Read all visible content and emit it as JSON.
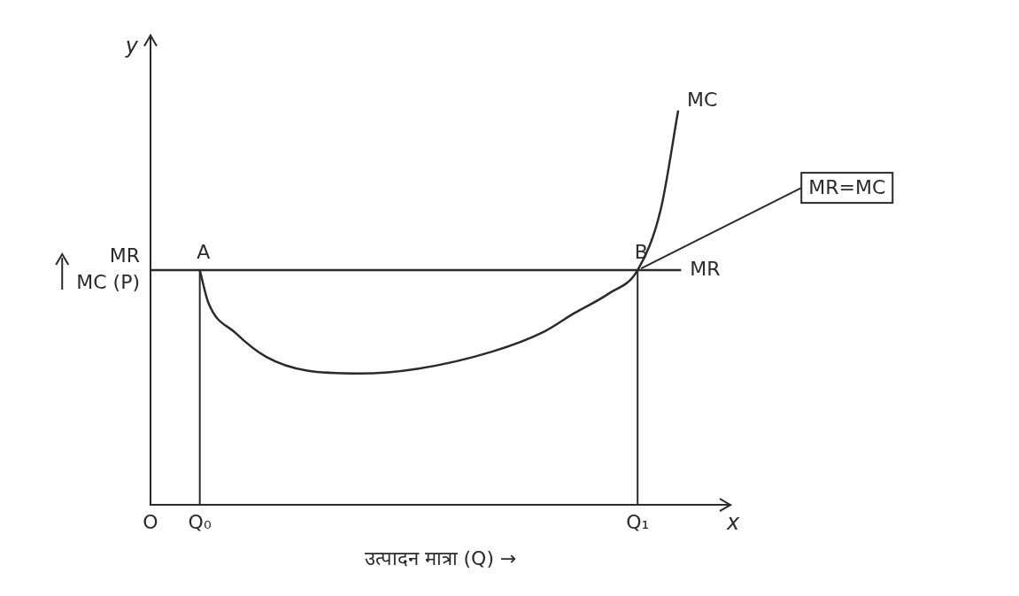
{
  "chart_data": {
    "type": "line",
    "xlabel": "उत्पादन मात्रा (Q) →",
    "ylabel": [
      "MR",
      "MC (P)"
    ],
    "xname": "x",
    "yname": "y",
    "xlim": [
      0,
      10
    ],
    "ylim": [
      0,
      10
    ],
    "xticks": [
      {
        "value": 0,
        "label": "O"
      },
      {
        "value": 0.85,
        "label": "Q₀"
      },
      {
        "value": 8.4,
        "label": "Q₁"
      }
    ],
    "yticks": [],
    "tick_labels": "x",
    "grid": false,
    "series": [
      {
        "name": "MC",
        "color": "#2b2b2b",
        "line_style": "solid",
        "x": [
          0.85,
          1.0,
          1.46,
          2.0,
          2.7,
          3.6,
          4.6,
          5.9,
          6.8,
          7.3,
          7.9,
          8.4,
          8.8,
          9.1
        ],
        "values": [
          5.0,
          4.3,
          3.67,
          3.15,
          2.86,
          2.8,
          2.9,
          3.27,
          3.7,
          4.08,
          4.5,
          5.0,
          6.3,
          8.4
        ]
      },
      {
        "name": "MR",
        "color": "#2b2b2b",
        "line_style": "solid",
        "x": [
          0,
          9.15
        ],
        "values": [
          5.0,
          5.0
        ]
      }
    ],
    "points": [
      {
        "label": "A",
        "x": 0.85,
        "y": 5.0
      },
      {
        "label": "B",
        "x": 8.4,
        "y": 5.0
      }
    ],
    "annotations": [
      {
        "text": "MR=MC",
        "points_to": "B"
      }
    ]
  }
}
